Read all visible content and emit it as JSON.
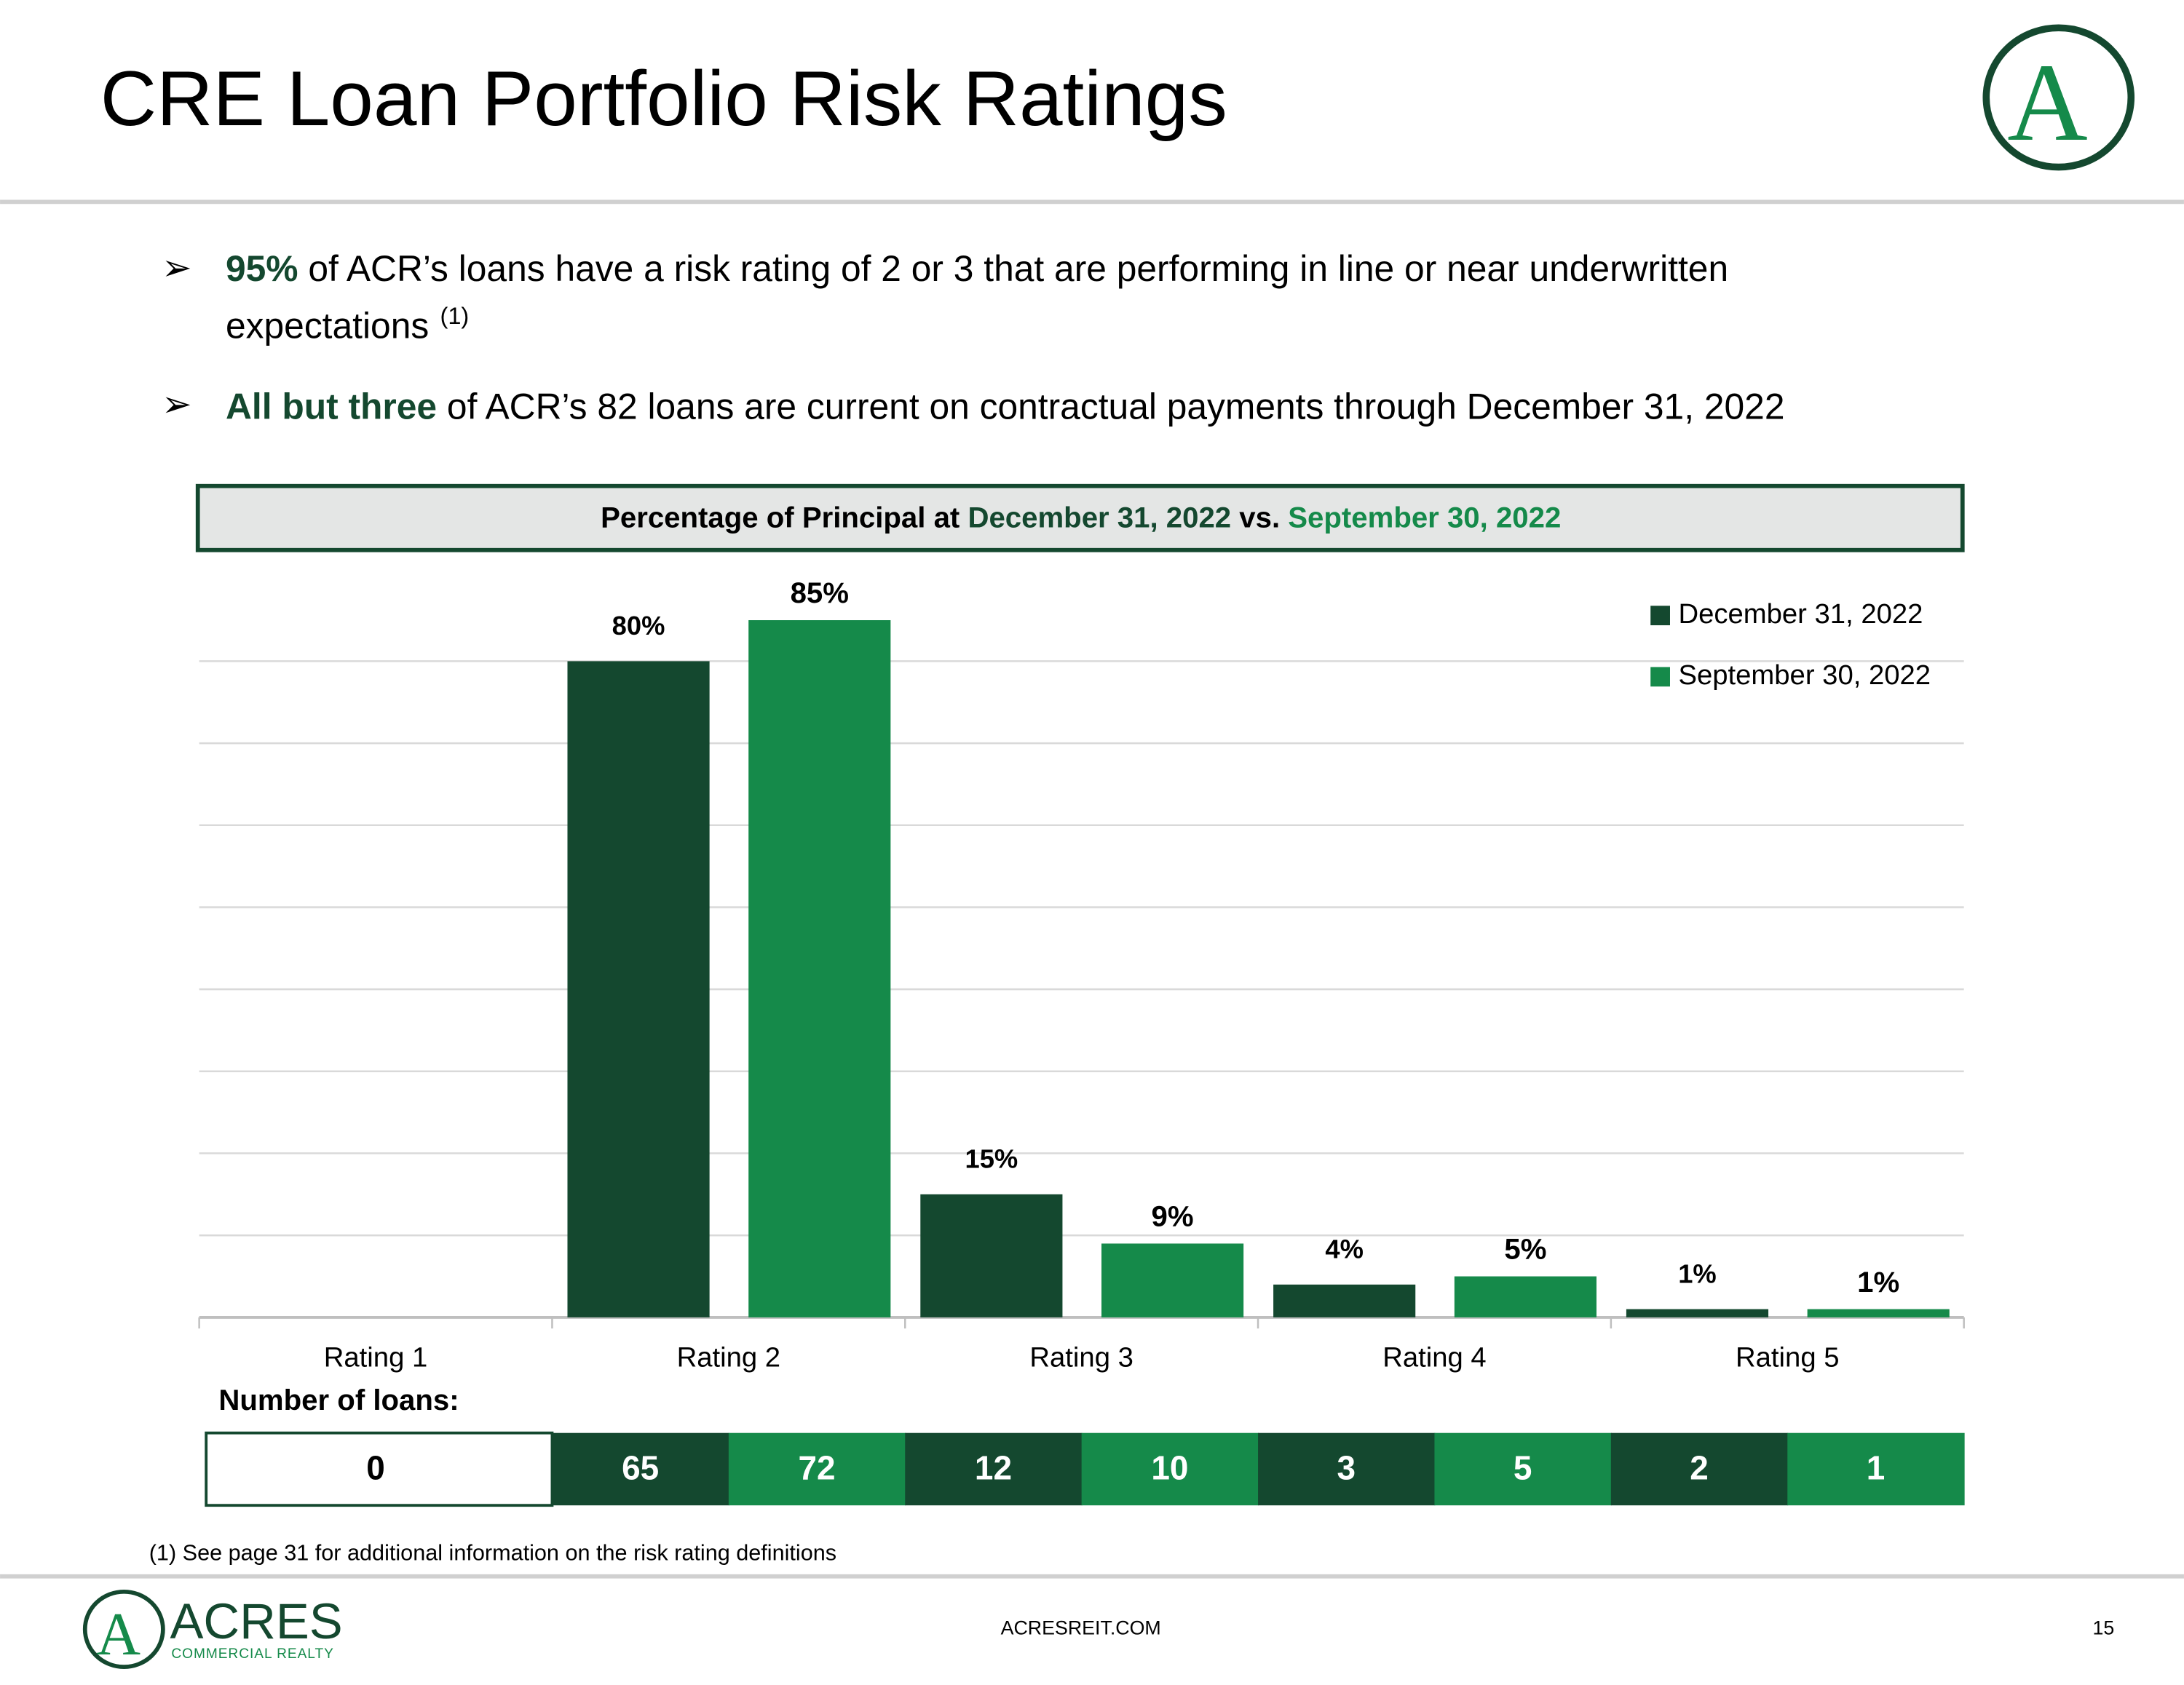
{
  "title": "CRE Loan Portfolio Risk Ratings",
  "logo": {
    "letter": "A",
    "name": "ACRES",
    "tagline": "COMMERCIAL REALTY"
  },
  "bullets": [
    {
      "strong": "95%",
      "text": " of ACR’s loans have a risk rating of 2 or 3 that are performing in line or near underwritten",
      "text2": "expectations",
      "note": "(1)"
    },
    {
      "strong": "All but three",
      "text": " of ACR’s 82 loans are current on contractual payments through December 31, 2022"
    }
  ],
  "chart_data": {
    "type": "bar",
    "header": {
      "lead": "Percentage of Principal at ",
      "date1": "December 31, 2022",
      "mid": " vs. ",
      "date2": "September 30, 2022"
    },
    "categories": [
      "Rating 1",
      "Rating 2",
      "Rating 3",
      "Rating 4",
      "Rating 5"
    ],
    "series": [
      {
        "name": "December 31, 2022",
        "color": "#14482f",
        "values": [
          0,
          80,
          15,
          4,
          1
        ],
        "value_labels": [
          null,
          "80%",
          "15%",
          "4%",
          "1%"
        ]
      },
      {
        "name": "September 30, 2022",
        "color": "#158a4a",
        "values": [
          0,
          85,
          9,
          5,
          1
        ],
        "value_labels": [
          null,
          "85%",
          "9%",
          "5%",
          "1%"
        ]
      }
    ],
    "ylim": [
      0,
      90
    ],
    "yticks": [
      0,
      10,
      20,
      30,
      40,
      50,
      60,
      70,
      80
    ],
    "grid": true,
    "legend": "top-right",
    "loan_table": {
      "label": "Number of loans:",
      "rating_1": 0,
      "series": [
        [
          65,
          12,
          3,
          2
        ],
        [
          72,
          10,
          5,
          1
        ]
      ]
    }
  },
  "footnote": "(1) See page 31 for additional information on the risk rating definitions",
  "footer": {
    "url": "ACRESREIT.COM",
    "page": "15"
  }
}
